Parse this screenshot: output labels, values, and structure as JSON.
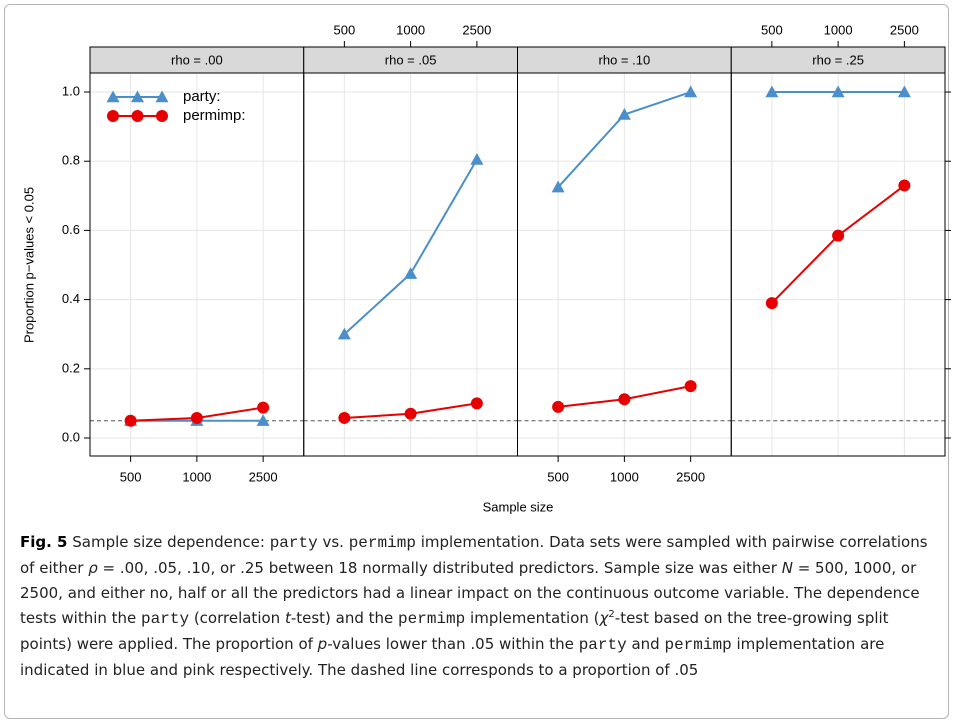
{
  "chart_data": {
    "type": "line",
    "ylabel": "Proportion p−values < 0.05",
    "xlabel": "Sample size",
    "categories": [
      500,
      1000,
      2500
    ],
    "ylim": [
      -0.052,
      1.055
    ],
    "yticks": [
      {
        "value": 0,
        "label": "0.0"
      },
      {
        "value": 0.2,
        "label": "0.2"
      },
      {
        "value": 0.4,
        "label": "0.4"
      },
      {
        "value": 0.6,
        "label": "0.6"
      },
      {
        "value": 0.8,
        "label": "0.8"
      },
      {
        "value": 1,
        "label": "1.0"
      }
    ],
    "grid": true,
    "reference_line": 0.05,
    "series": [
      {
        "name": "party:",
        "color": "#4a8fc9",
        "marker": "triangle"
      },
      {
        "name": "permimp:",
        "color": "#e60000",
        "marker": "circle"
      }
    ],
    "panels": [
      {
        "title": "rho = .00",
        "values": [
          [
            0.05,
            0.05,
            0.05
          ],
          [
            0.05,
            0.058,
            0.088
          ]
        ]
      },
      {
        "title": "rho = .05",
        "values": [
          [
            0.3,
            0.475,
            0.805
          ],
          [
            0.058,
            0.07,
            0.1
          ]
        ]
      },
      {
        "title": "rho = .10",
        "values": [
          [
            0.725,
            0.935,
            1.0
          ],
          [
            0.09,
            0.112,
            0.15
          ]
        ]
      },
      {
        "title": "rho = .25",
        "values": [
          [
            1.0,
            1.0,
            1.0
          ],
          [
            0.39,
            0.585,
            0.73
          ]
        ]
      }
    ]
  },
  "caption": [
    {
      "text": "Fig. 5",
      "style": "bold"
    },
    {
      "text": "  Sample size dependence: ",
      "style": "normal"
    },
    {
      "text": "party",
      "style": "code"
    },
    {
      "text": " vs. ",
      "style": "normal"
    },
    {
      "text": "permimp",
      "style": "code"
    },
    {
      "text": " implementation. Data sets were sampled with pairwise correlations of either ",
      "style": "normal"
    },
    {
      "text": "ρ",
      "style": "italic"
    },
    {
      "text": " = .00, .05, .10, or .25 between 18 normally distributed predictors. Sample size was either ",
      "style": "normal"
    },
    {
      "text": "N",
      "style": "italic"
    },
    {
      "text": " = 500, 1000, or 2500, and either no, half or all the predictors had a linear impact on the continuous outcome variable. The dependence tests within the ",
      "style": "normal"
    },
    {
      "text": "party",
      "style": "code"
    },
    {
      "text": " (correlation ",
      "style": "normal"
    },
    {
      "text": "t",
      "style": "italic"
    },
    {
      "text": "-test) and the ",
      "style": "normal"
    },
    {
      "text": "permimp",
      "style": "code"
    },
    {
      "text": " implementation (",
      "style": "normal"
    },
    {
      "text": "χ",
      "style": "italic"
    },
    {
      "text": "2",
      "style": "sup"
    },
    {
      "text": "-test based on the tree-growing split points) were applied. The proportion of ",
      "style": "normal"
    },
    {
      "text": "p",
      "style": "italic"
    },
    {
      "text": "-values lower than .05 within the ",
      "style": "normal"
    },
    {
      "text": "party",
      "style": "code"
    },
    {
      "text": " and ",
      "style": "normal"
    },
    {
      "text": "permimp",
      "style": "code"
    },
    {
      "text": " implementation are indicated in blue and pink respectively. The dashed line corresponds to a proportion of .05",
      "style": "normal"
    }
  ]
}
